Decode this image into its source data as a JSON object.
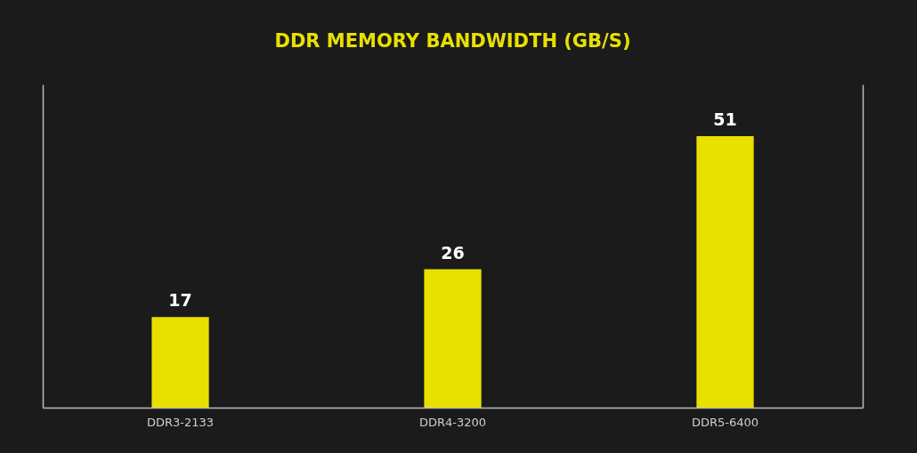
{
  "chart_data": {
    "type": "bar",
    "title": "DDR MEMORY BANDWIDTH (GB/S)",
    "categories": [
      "DDR3-2133",
      "DDR4-3200",
      "DDR5-6400"
    ],
    "values": [
      17,
      26,
      51
    ],
    "color": "#e8e000",
    "data_labels": true,
    "grid": false
  }
}
